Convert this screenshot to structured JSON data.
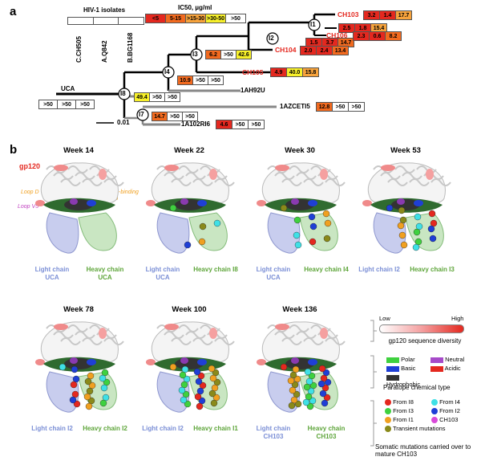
{
  "panel_a": {
    "letter": "a",
    "isolates_title": "HIV-1 isolates",
    "isolates": [
      "C.CH505",
      "A.Q842",
      "B.BG1168"
    ],
    "ic50_title": "IC50, µg/ml",
    "ic50_legend": [
      {
        "label": "<5",
        "color": "#e4281f"
      },
      {
        "label": "5-15",
        "color": "#f26a1f"
      },
      {
        "label": ">15-30",
        "color": "#f7a33c"
      },
      {
        "label": ">30-50",
        "color": "#f7f02a"
      },
      {
        "label": ">50",
        "color": "#ffffff"
      }
    ],
    "scale_bar": "0.01",
    "nodes": [
      "I1",
      "I2",
      "I3",
      "I4",
      "I8",
      "I7"
    ],
    "uca": {
      "name": "UCA",
      "values": [
        ">50",
        ">50",
        ">50"
      ],
      "colors": [
        "#ffffff",
        "#ffffff",
        "#ffffff"
      ]
    },
    "i8_values": {
      "values": [
        "49.4",
        ">50",
        ">50"
      ],
      "colors": [
        "#f7f02a",
        "#ffffff",
        "#ffffff"
      ]
    },
    "i4_values": {
      "values": [
        "10.9",
        ">50",
        ">50"
      ],
      "colors": [
        "#f26a1f",
        "#ffffff",
        "#ffffff"
      ]
    },
    "i3_values": {
      "values": [
        "6.2",
        ">50",
        "42.6"
      ],
      "colors": [
        "#f26a1f",
        "#ffffff",
        "#f7f02a"
      ]
    },
    "i7_values": {
      "values": [
        "14.7",
        ">50",
        ">50"
      ],
      "colors": [
        "#f26a1f",
        "#ffffff",
        "#ffffff"
      ]
    },
    "leaves": [
      {
        "name": "CH103",
        "values": [
          "3.2",
          "1.4",
          "17.7"
        ],
        "colors": [
          "#e4281f",
          "#e4281f",
          "#f7a33c"
        ],
        "red": true
      },
      {
        "name": "",
        "values": [
          "2.5",
          "1.8",
          "15.4"
        ],
        "colors": [
          "#e4281f",
          "#e4281f",
          "#f7a33c"
        ],
        "red": false
      },
      {
        "name": "",
        "values": [
          "1.5",
          "3.7",
          "14.7"
        ],
        "colors": [
          "#e4281f",
          "#e4281f",
          "#f26a1f"
        ],
        "red": false
      },
      {
        "name": "CH106",
        "values": [
          "2.3",
          "0.6",
          "8.2"
        ],
        "colors": [
          "#e4281f",
          "#e4281f",
          "#f26a1f"
        ],
        "red": true
      },
      {
        "name": "CH104",
        "values": [
          "2.0",
          "2.4",
          "13.4"
        ],
        "colors": [
          "#e4281f",
          "#e4281f",
          "#f26a1f"
        ],
        "red": true
      },
      {
        "name": "CH105",
        "values": [
          "4.9",
          "40.0",
          "15.8"
        ],
        "colors": [
          "#e4281f",
          "#f7f02a",
          "#f7a33c"
        ],
        "red": true
      },
      {
        "name": "1AH92U",
        "values": [],
        "colors": [],
        "red": false
      },
      {
        "name": "1AZCETI5",
        "values": [
          "12.8",
          ">50",
          ">50"
        ],
        "colors": [
          "#f26a1f",
          "#ffffff",
          "#ffffff"
        ],
        "red": false
      },
      {
        "name": "1A102RI6",
        "values": [
          "4.6",
          ">50",
          ">50"
        ],
        "colors": [
          "#e4281f",
          "#ffffff",
          "#ffffff"
        ],
        "red": false
      }
    ]
  },
  "panel_b": {
    "letter": "b",
    "gp120_label": "gp120",
    "loop_d": "Loop D",
    "loop_v5": "Loop V5",
    "cd4_loop": "CD4-binding loop",
    "structures": [
      {
        "week": "Week 14",
        "light": "Light chain UCA",
        "heavy": "Heavy chain UCA"
      },
      {
        "week": "Week 22",
        "light": "Light chain UCA",
        "heavy": "Heavy chain I8"
      },
      {
        "week": "Week 30",
        "light": "Light chain UCA",
        "heavy": "Heavy chain I4"
      },
      {
        "week": "Week 53",
        "light": "Light chain I2",
        "heavy": "Heavy chain I3"
      },
      {
        "week": "Week 78",
        "light": "Light chain I2",
        "heavy": "Heavy chain I2"
      },
      {
        "week": "Week 100",
        "light": "Light chain I2",
        "heavy": "Heavy chain I1"
      },
      {
        "week": "Week 136",
        "light": "Light chain CH103",
        "heavy": "Heavy chain CH103"
      }
    ],
    "legend": {
      "diversity_low": "Low",
      "diversity_high": "High",
      "diversity_title": "gp120 sequence diversity",
      "paratope_items": [
        {
          "label": "Polar",
          "color": "#3fd13f"
        },
        {
          "label": "Neutral",
          "color": "#a64ac9"
        },
        {
          "label": "Basic",
          "color": "#1f3fd6"
        },
        {
          "label": "Acidic",
          "color": "#e4281f"
        },
        {
          "label": "Hydrophobic",
          "color": "#333333"
        }
      ],
      "paratope_title": "Paratope chemical type",
      "mutation_items": [
        {
          "label": "From I8",
          "color": "#e4281f"
        },
        {
          "label": "From I4",
          "color": "#3fe0e6"
        },
        {
          "label": "From I3",
          "color": "#3fd13f"
        },
        {
          "label": "From I2",
          "color": "#1f3fd6"
        },
        {
          "label": "From I1",
          "color": "#f0a020"
        },
        {
          "label": "CH103",
          "color": "#d94ad9"
        },
        {
          "label": "Transient mutations",
          "color": "#8a8a1a"
        }
      ],
      "mutation_title": "Somatic mutations carried over to mature CH103"
    }
  }
}
